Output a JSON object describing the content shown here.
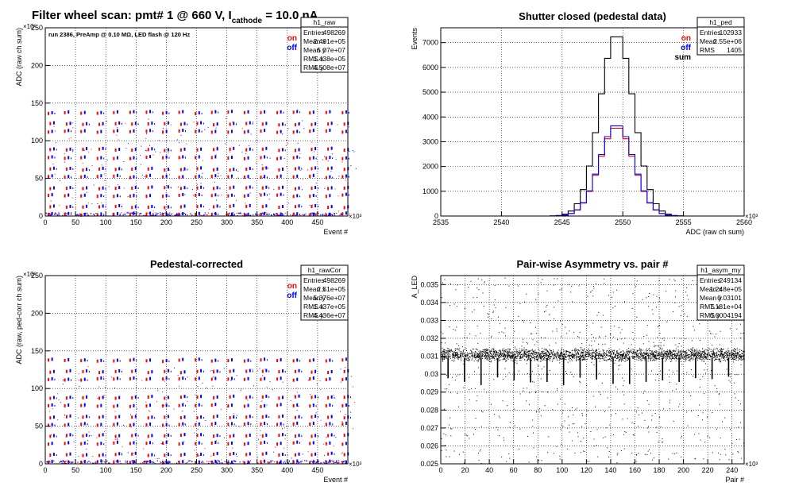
{
  "title": {
    "prefix": "Filter wheel scan: pmt#   1 @   660 V, I",
    "sub": "cathode",
    "suffix": " = 10.0 nA"
  },
  "colors": {
    "on": "#ff0000",
    "off": "#0000ff",
    "sum": "#000000",
    "frame": "#000000"
  },
  "chart_data": [
    {
      "id": "raw",
      "type": "scatter",
      "title": "",
      "annotation": "run 2386, PreAmp @ 0.10 MΩ, LED flash @  120 Hz",
      "xlabel": "Event #",
      "ylabel": "ADC (raw ch sum)",
      "x_multiplier": "×10³",
      "y_multiplier": "×10⁶",
      "xlim": [
        0,
        500
      ],
      "ylim": [
        0,
        250
      ],
      "xticks": [
        0,
        50,
        100,
        150,
        200,
        250,
        300,
        350,
        400,
        450
      ],
      "yticks": [
        0,
        50,
        100,
        150,
        200,
        250
      ],
      "grid": true,
      "legend": [
        {
          "label": "on",
          "color": "#ff0000"
        },
        {
          "label": "off",
          "color": "#0000ff"
        }
      ],
      "stats_title": "h1_raw",
      "stats": [
        [
          "Entries",
          "498269"
        ],
        [
          "Mean x",
          "2.491e+05"
        ],
        [
          "Mean y",
          "5.07e+07"
        ],
        [
          "RMS x",
          "1.438e+05"
        ],
        [
          "RMS y",
          "4.508e+07"
        ]
      ],
      "cycle_period": 27,
      "levels": [
        2,
        12,
        27,
        37,
        52,
        62,
        77,
        88,
        112,
        122,
        137
      ],
      "level_jitter": 2
    },
    {
      "id": "ped",
      "type": "line",
      "title": "Shutter closed (pedestal data)",
      "xlabel": "ADC (raw ch sum)",
      "ylabel": "Events",
      "x_multiplier": "×10³",
      "xlim": [
        2535,
        2560
      ],
      "ylim": [
        0,
        7600
      ],
      "xticks": [
        2535,
        2540,
        2545,
        2550,
        2555,
        2560
      ],
      "yticks": [
        0,
        1000,
        2000,
        3000,
        4000,
        5000,
        6000,
        7000
      ],
      "grid": true,
      "legend": [
        {
          "label": "on",
          "color": "#ff0000"
        },
        {
          "label": "off",
          "color": "#0000ff"
        },
        {
          "label": "sum",
          "color": "#000000"
        }
      ],
      "stats_title": "h1_ped",
      "stats": [
        [
          "Entries",
          "102933"
        ],
        [
          "Mean",
          "2.55e+06"
        ],
        [
          "RMS",
          "1405"
        ]
      ],
      "series": [
        {
          "name": "sum",
          "mean": 2549.5,
          "sigma": 1.4,
          "peak": 7350
        },
        {
          "name": "on",
          "mean": 2549.5,
          "sigma": 1.4,
          "peak": 3600
        },
        {
          "name": "off",
          "mean": 2549.5,
          "sigma": 1.4,
          "peak": 3700
        }
      ]
    },
    {
      "id": "rawCor",
      "type": "scatter",
      "title": "Pedestal-corrected",
      "xlabel": "Event #",
      "ylabel": "ADC (raw, ped-corr ch sum)",
      "x_multiplier": "×10³",
      "y_multiplier": "×10⁶",
      "xlim": [
        0,
        500
      ],
      "ylim": [
        0,
        250
      ],
      "xticks": [
        0,
        50,
        100,
        150,
        200,
        250,
        300,
        350,
        400,
        450
      ],
      "yticks": [
        0,
        50,
        100,
        150,
        200,
        250
      ],
      "grid": true,
      "legend": [
        {
          "label": "on",
          "color": "#ff0000"
        },
        {
          "label": "off",
          "color": "#0000ff"
        }
      ],
      "stats_title": "h1_rawCor",
      "stats": [
        [
          "Entries",
          "498269"
        ],
        [
          "Mean x",
          "2.51e+05"
        ],
        [
          "Mean y",
          "5.376e+07"
        ],
        [
          "RMS x",
          "1.437e+05"
        ],
        [
          "RMS y",
          "4.436e+07"
        ]
      ],
      "cycle_period": 27,
      "levels": [
        2,
        12,
        27,
        37,
        52,
        62,
        77,
        88,
        112,
        122,
        137
      ],
      "level_jitter": 2
    },
    {
      "id": "asym",
      "type": "scatter",
      "title": "Pair-wise Asymmetry vs. pair #",
      "xlabel": "Pair #",
      "ylabel": "A_LED",
      "x_multiplier": "×10³",
      "xlim": [
        0,
        250
      ],
      "ylim": [
        0.025,
        0.0355
      ],
      "xticks": [
        0,
        20,
        40,
        60,
        80,
        100,
        120,
        140,
        160,
        180,
        200,
        220,
        240
      ],
      "yticks": [
        0.025,
        0.026,
        0.027,
        0.028,
        0.029,
        0.03,
        0.031,
        0.032,
        0.033,
        0.034,
        0.035
      ],
      "ytick_labels": [
        "0.025",
        "0.026",
        "0.027",
        "0.028",
        "0.029",
        "0.03",
        "0.031",
        "0.032",
        "0.033",
        "0.034",
        "0.035"
      ],
      "grid": true,
      "stats_title": "h1_asym_my",
      "stats": [
        [
          "Entries",
          "249134"
        ],
        [
          "Mean x",
          "1.248e+05"
        ],
        [
          "Mean y",
          "0.03101"
        ],
        [
          "RMS x",
          "7.181e+04"
        ],
        [
          "RMS y",
          "0.0004194"
        ]
      ],
      "band_center": 0.0311,
      "band_halfwidth": 0.0004,
      "dips_every": 13.6,
      "dip_min": 0.0293
    }
  ]
}
